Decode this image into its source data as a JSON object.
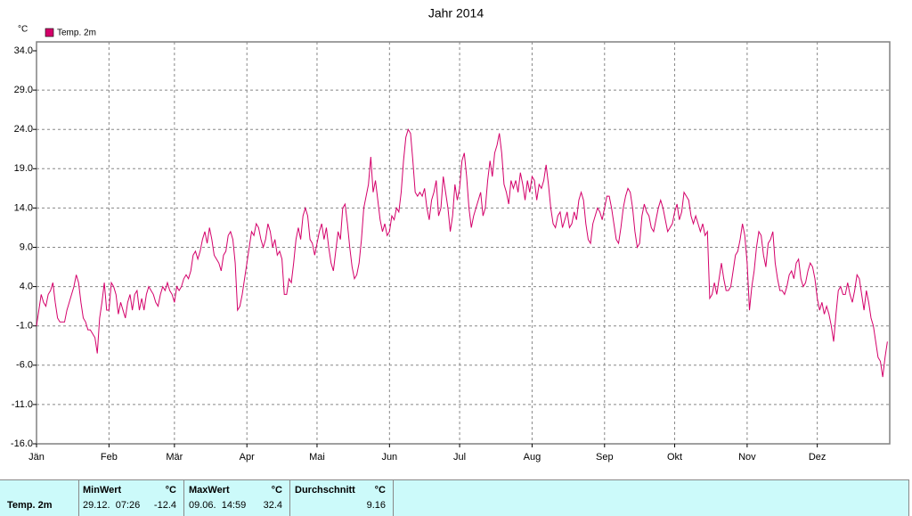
{
  "chart_data": {
    "type": "line",
    "title": "Jahr 2014",
    "y_label": "°C",
    "xlim": [
      0,
      365
    ],
    "xticks": [
      {
        "value": 0,
        "label": "Jän"
      },
      {
        "value": 31,
        "label": "Feb"
      },
      {
        "value": 59,
        "label": "Mär"
      },
      {
        "value": 90,
        "label": "Apr"
      },
      {
        "value": 120,
        "label": "Mai"
      },
      {
        "value": 151,
        "label": "Jun"
      },
      {
        "value": 181,
        "label": "Jul"
      },
      {
        "value": 212,
        "label": "Aug"
      },
      {
        "value": 243,
        "label": "Sep"
      },
      {
        "value": 273,
        "label": "Okt"
      },
      {
        "value": 304,
        "label": "Nov"
      },
      {
        "value": 334,
        "label": "Dez"
      }
    ],
    "ylim": [
      -16,
      34
    ],
    "yticks": [
      {
        "value": 34,
        "label": "34.0"
      },
      {
        "value": 29,
        "label": "29.0"
      },
      {
        "value": 24,
        "label": "24.0"
      },
      {
        "value": 19,
        "label": "19.0"
      },
      {
        "value": 14,
        "label": "14.0"
      },
      {
        "value": 9,
        "label": "9.0"
      },
      {
        "value": 4,
        "label": "4.0"
      },
      {
        "value": -1,
        "label": "-1.0"
      },
      {
        "value": -6,
        "label": "-6.0"
      },
      {
        "value": -11,
        "label": "-11.0"
      },
      {
        "value": -16,
        "label": "-16.0"
      }
    ],
    "grid": true,
    "legend": "top-left",
    "series": [
      {
        "name": "Temp. 2m",
        "color": "#d4006a",
        "values": [
          -1,
          1,
          3,
          2,
          1.5,
          3,
          3.5,
          4.5,
          2,
          0,
          -0.5,
          -0.5,
          -0.5,
          1,
          2,
          3,
          4,
          5.5,
          4.5,
          2,
          0,
          -0.5,
          -1.5,
          -1.5,
          -2,
          -2.5,
          -4.5,
          0,
          2,
          4.5,
          1,
          1,
          4.5,
          4,
          3,
          0.5,
          2,
          1,
          0,
          2,
          3,
          1,
          3,
          3.5,
          1,
          2.5,
          1,
          3,
          4,
          3.5,
          3,
          2,
          1.5,
          3,
          4,
          3.5,
          4.5,
          3.5,
          3,
          2,
          4,
          3.5,
          4,
          5,
          5.5,
          5,
          6,
          8,
          8.5,
          7.5,
          8.5,
          10,
          11,
          9.5,
          11.5,
          10,
          8,
          7.5,
          7,
          6,
          8,
          8.5,
          10.5,
          11,
          10,
          7,
          1,
          1.5,
          3,
          5,
          7,
          9,
          11,
          10.5,
          12,
          11.5,
          10,
          9,
          10,
          12,
          11,
          9,
          10,
          8,
          8.5,
          7.5,
          3,
          3,
          5,
          4.5,
          7,
          10,
          11.5,
          10,
          13,
          14,
          13,
          10,
          9.5,
          8,
          9.5,
          11,
          12,
          10,
          11.5,
          9,
          7,
          6,
          8.5,
          11,
          10,
          14,
          14.5,
          12,
          9,
          6.5,
          5,
          5.5,
          7,
          10,
          14,
          15.5,
          17,
          20.5,
          16,
          17.5,
          15,
          12.5,
          11,
          12,
          10.5,
          11,
          13,
          12.5,
          14,
          13.5,
          16,
          20,
          23,
          24,
          23.5,
          20,
          16,
          15.5,
          16,
          15.5,
          16.5,
          14,
          12.5,
          15,
          16,
          17.5,
          13,
          14,
          18,
          16,
          14,
          11,
          13,
          17,
          15,
          16.5,
          20,
          21,
          18,
          14,
          11.5,
          13,
          14,
          15,
          16,
          13,
          14,
          17.5,
          20,
          18,
          21,
          22,
          23.5,
          21,
          17,
          16,
          14.5,
          17.5,
          16.5,
          17.5,
          16,
          18.5,
          17,
          15,
          17.5,
          16,
          18,
          17.5,
          15,
          17,
          16.5,
          17.5,
          19.5,
          17,
          14,
          12,
          11.5,
          13,
          13.5,
          11.5,
          12.5,
          13.5,
          11.5,
          12,
          13.5,
          12.5,
          15,
          16,
          15,
          12,
          10,
          9.5,
          12,
          13,
          14,
          13.5,
          12.5,
          14,
          15.5,
          15.5,
          14,
          12,
          10,
          9.5,
          11.5,
          14,
          15.5,
          16.5,
          16,
          14,
          11,
          9,
          9.5,
          13,
          14.5,
          13.5,
          13,
          11.5,
          11,
          12.5,
          14,
          15,
          14,
          12.5,
          11,
          11.5,
          12,
          13.5,
          14.5,
          12.5,
          13.5,
          16,
          15.5,
          15,
          13,
          12,
          13,
          12,
          11,
          12,
          10.5,
          11,
          2.5,
          3,
          4.5,
          3,
          5,
          7,
          5,
          3.5,
          3.5,
          4,
          6,
          8,
          8.5,
          10,
          12,
          10.5,
          7,
          1,
          4,
          6,
          9,
          11,
          10.5,
          8,
          6.5,
          9.5,
          10,
          11,
          7,
          5,
          3.5,
          3.5,
          3,
          4,
          5.5,
          6,
          5,
          7,
          7.5,
          5,
          4,
          4.5,
          6,
          7,
          6.5,
          5,
          2.5,
          1,
          2,
          0.5,
          1.5,
          0.5,
          -1,
          -3,
          0.5,
          3.5,
          4,
          3,
          3,
          4.5,
          3,
          2,
          3.5,
          5.5,
          5,
          3,
          1,
          3.5,
          2,
          0,
          -1,
          -3,
          -5,
          -5.5,
          -7.5,
          -5,
          -3
        ]
      }
    ]
  },
  "summary": {
    "row_label": "Temp. 2m",
    "columns": [
      {
        "header": "MinWert",
        "unit": "°C",
        "time": "29.12.  07:26",
        "value": -12.4
      },
      {
        "header": "MaxWert",
        "unit": "°C",
        "time": "09.06.  14:59",
        "value": 32.4
      },
      {
        "header": "Durchschnitt",
        "unit": "°C",
        "value": 9.16
      }
    ]
  }
}
